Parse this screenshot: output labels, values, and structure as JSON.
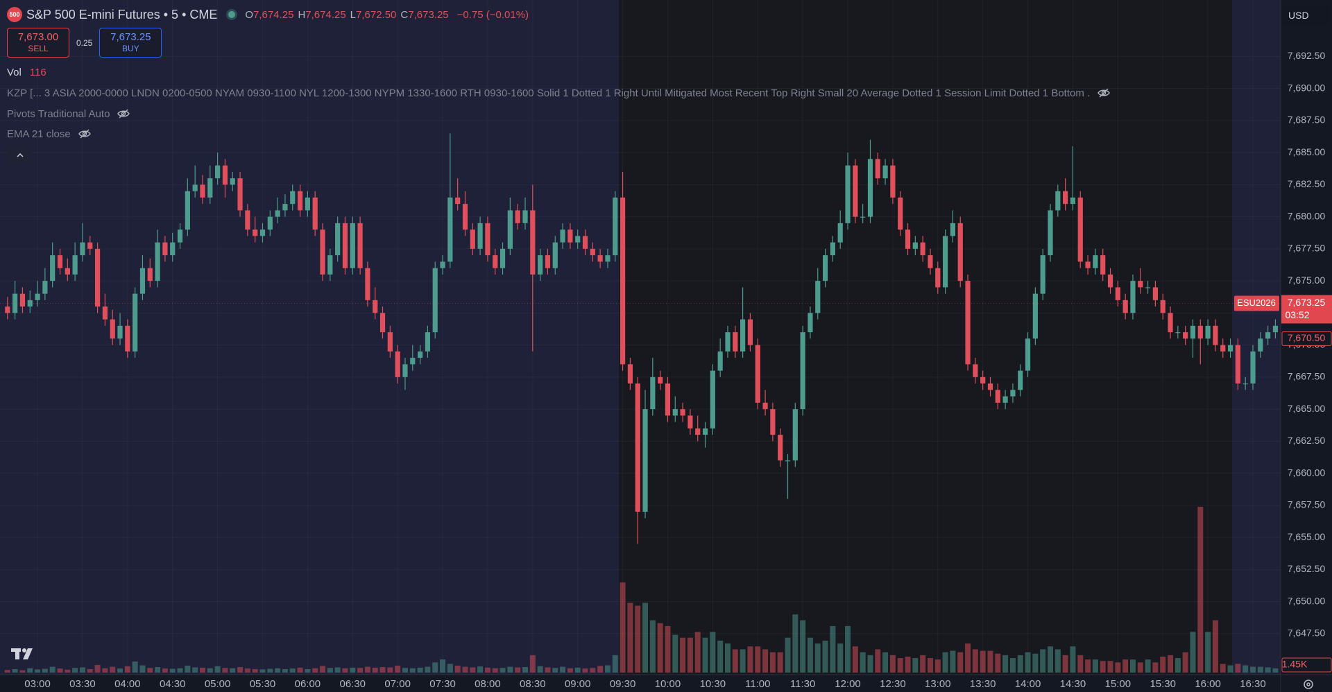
{
  "header": {
    "logo": "500",
    "symbol": "S&P 500 E-mini Futures • 5 • CME",
    "ohlc": [
      {
        "label": "O",
        "value": "7,674.25"
      },
      {
        "label": "H",
        "value": "7,674.25"
      },
      {
        "label": "L",
        "value": "7,672.50"
      },
      {
        "label": "C",
        "value": "7,673.25"
      }
    ],
    "change": "−0.75 (−0.01%)",
    "sell": {
      "price": "7,673.00",
      "label": "SELL"
    },
    "spread": "0.25",
    "buy": {
      "price": "7,673.25",
      "label": "BUY"
    },
    "volume": {
      "label": "Vol",
      "value": "116"
    },
    "indicators": [
      "KZP [... 3 ASIA 2000-0000 LNDN 0200-0500 NYAM 0930-1100 NYL 1200-1300 NYPM 1330-1600 RTH 0930-1600 Solid 1 Dotted 1 Right Until Mitigated Most Recent Top Right Small 20 Average Dotted 1 Session Limit Dotted 1 Bottom .",
      "Pivots Traditional Auto",
      "EMA 21 close"
    ],
    "currency": "USD"
  },
  "chart_data": {
    "type": "candlestick",
    "up_color": "#4e9c8d",
    "down_color": "#e0505c",
    "grid": true,
    "open": [
      7673,
      7672.5,
      7674,
      7673,
      7673.5,
      7674,
      7675,
      7677,
      7676,
      7675.5,
      7677,
      7678,
      7677.5,
      7673,
      7672,
      7670.5,
      7671.5,
      7669.5,
      7674,
      7676,
      7675,
      7678,
      7677,
      7678,
      7679,
      7682,
      7682.5,
      7681.5,
      7683,
      7684,
      7682.5,
      7683,
      7680.5,
      7679,
      7678.5,
      7679,
      7680,
      7680.5,
      7681,
      7682,
      7680.5,
      7681.5,
      7679,
      7675.5,
      7677,
      7679.5,
      7676,
      7679.5,
      7676,
      7673.5,
      7672.5,
      7671,
      7669.5,
      7667.5,
      7668.5,
      7669,
      7669.5,
      7671,
      7676,
      7676.5,
      7681.5,
      7681,
      7679,
      7677.5,
      7679.5,
      7677,
      7676,
      7677.5,
      7680.5,
      7679.5,
      7680.5,
      7675.5,
      7677,
      7676,
      7678,
      7679,
      7678,
      7678.5,
      7677.5,
      7677,
      7676.5,
      7677,
      7681.5,
      7668.5,
      7667,
      7657,
      7665,
      7667.5,
      7667,
      7664.5,
      7665,
      7664.5,
      7663.5,
      7663,
      7663.5,
      7668,
      7669.5,
      7671,
      7669.5,
      7672,
      7670,
      7665.5,
      7665,
      7663,
      7661,
      7661,
      7665,
      7671,
      7672.5,
      7675,
      7677,
      7678,
      7679.5,
      7684,
      7680,
      7680,
      7684.5,
      7683,
      7684,
      7681.5,
      7679,
      7677.5,
      7678,
      7677,
      7676,
      7674.5,
      7678.5,
      7679.5,
      7675,
      7668.5,
      7667.5,
      7667,
      7666.5,
      7665.5,
      7666,
      7666.5,
      7668,
      7670.5,
      7674,
      7677,
      7680.5,
      7682,
      7681,
      7681.5,
      7676.5,
      7676,
      7677,
      7675.5,
      7674.5,
      7673.5,
      7672.5,
      7675,
      7674.5,
      7674.5,
      7673.5,
      7672.5,
      7671,
      7671,
      7670.5,
      7671.5,
      7670.5,
      7671.5,
      7670,
      7669.5,
      7670,
      7667,
      7667,
      7669.5,
      7670.5,
      7671
    ],
    "high": [
      7673.75,
      7675,
      7674.5,
      7674.25,
      7675,
      7676,
      7678,
      7677.5,
      7676.75,
      7678,
      7679.5,
      7678.5,
      7678,
      7674,
      7672.75,
      7672.5,
      7672,
      7674.5,
      7677,
      7676.75,
      7679,
      7678.5,
      7678.75,
      7679.5,
      7683,
      7684,
      7683.25,
      7684,
      7685,
      7684.5,
      7683.5,
      7683.5,
      7681,
      7680,
      7679.5,
      7680.5,
      7681.5,
      7681.75,
      7682.5,
      7682.5,
      7682,
      7682,
      7679.5,
      7677.5,
      7680,
      7680,
      7680,
      7680,
      7676.5,
      7674.5,
      7673,
      7671.5,
      7670,
      7669,
      7670,
      7670,
      7671.5,
      7676.5,
      7677,
      7686.5,
      7683,
      7682,
      7679.5,
      7680,
      7680,
      7677.5,
      7678,
      7681.5,
      7681,
      7681.5,
      7682.5,
      7677.5,
      7677.5,
      7678.5,
      7679.5,
      7679.5,
      7679,
      7679,
      7678,
      7677.5,
      7677.5,
      7682,
      7683.5,
      7669,
      7667.5,
      7666.5,
      7669,
      7668,
      7667.5,
      7666,
      7665.5,
      7665,
      7664.5,
      7664,
      7668.5,
      7670.5,
      7671.5,
      7671.5,
      7674.5,
      7672.5,
      7670.5,
      7666.5,
      7665.5,
      7663.5,
      7661.5,
      7665.5,
      7671.5,
      7673,
      7676,
      7677.5,
      7678.5,
      7680.5,
      7685,
      7684.5,
      7681,
      7686,
      7685,
      7684.5,
      7684.5,
      7682,
      7679.5,
      7678.5,
      7678.5,
      7677.5,
      7676.5,
      7679,
      7680.5,
      7680,
      7675.5,
      7669,
      7668,
      7667.5,
      7667,
      7666.5,
      7667,
      7668.5,
      7671,
      7674.5,
      7677.5,
      7681,
      7682.5,
      7683,
      7685.5,
      7682,
      7677,
      7677.5,
      7677.5,
      7676,
      7675,
      7674,
      7675.5,
      7676,
      7675,
      7675,
      7674,
      7673,
      7671.5,
      7671.5,
      7672,
      7672,
      7672,
      7672,
      7670.5,
      7670.5,
      7670.5,
      7667.5,
      7670,
      7671,
      7671.5,
      7672
    ],
    "low": [
      7672,
      7672,
      7672.5,
      7672.5,
      7673,
      7673.5,
      7674.5,
      7675.5,
      7675,
      7675,
      7676.5,
      7677,
      7672.5,
      7671.5,
      7670,
      7670,
      7669,
      7669,
      7673.5,
      7674.5,
      7674.5,
      7676.5,
      7676.5,
      7677.5,
      7678.5,
      7681.5,
      7681,
      7681,
      7682.5,
      7681.5,
      7682,
      7680,
      7678.5,
      7678,
      7678,
      7678.5,
      7679.5,
      7680,
      7680.5,
      7680,
      7680,
      7678.5,
      7675,
      7675,
      7676.5,
      7675.5,
      7675.5,
      7675.5,
      7673,
      7672,
      7670.5,
      7669,
      7667,
      7666.5,
      7668,
      7668.5,
      7669,
      7670.5,
      7675.5,
      7676,
      7680.5,
      7678.5,
      7677,
      7677,
      7676.5,
      7675.5,
      7675.5,
      7677,
      7679,
      7679,
      7669.5,
      7675,
      7675.5,
      7675.5,
      7677.5,
      7677.5,
      7677.5,
      7677,
      7676.5,
      7676,
      7676,
      7676.5,
      7668,
      7666.5,
      7654.5,
      7656.5,
      7664.5,
      7666.5,
      7664,
      7664,
      7664,
      7663,
      7662.5,
      7662,
      7663,
      7667.5,
      7669,
      7669,
      7669,
      7669.5,
      7665,
      7664.5,
      7662.5,
      7660.5,
      7658,
      7660.5,
      7664.5,
      7670.5,
      7672,
      7674.5,
      7676.5,
      7677.5,
      7679,
      7679.5,
      7679.5,
      7679.5,
      7682.5,
      7682.5,
      7681,
      7678.5,
      7677,
      7677,
      7676.5,
      7675.5,
      7674,
      7674,
      7678,
      7674.5,
      7668,
      7667,
      7666.5,
      7666,
      7665,
      7665,
      7665.5,
      7666,
      7667.5,
      7670,
      7673.5,
      7676.5,
      7680,
      7680.5,
      7680.5,
      7676,
      7675.5,
      7675.5,
      7675,
      7674,
      7673,
      7672,
      7672,
      7674,
      7674,
      7673,
      7672,
      7670.5,
      7670.5,
      7670,
      7669,
      7668.5,
      7670,
      7669.5,
      7669,
      7669,
      7666.5,
      7666.5,
      7666.5,
      7669,
      7670,
      7670.5
    ],
    "close": [
      7672.5,
      7674,
      7673,
      7673.5,
      7674,
      7675,
      7677,
      7676,
      7675.5,
      7677,
      7678,
      7677.5,
      7673,
      7672,
      7670.5,
      7671.5,
      7669.5,
      7674,
      7676,
      7675,
      7678,
      7677,
      7678,
      7679,
      7682,
      7682.5,
      7681.5,
      7683,
      7684,
      7682.5,
      7683,
      7680.5,
      7679,
      7678.5,
      7679,
      7680,
      7680.5,
      7681,
      7682,
      7680.5,
      7681.5,
      7679,
      7675.5,
      7677,
      7679.5,
      7676,
      7679.5,
      7676,
      7673.5,
      7672.5,
      7671,
      7669.5,
      7667.5,
      7668.5,
      7669,
      7669.5,
      7671,
      7676,
      7676.5,
      7681.5,
      7681,
      7679,
      7677.5,
      7679.5,
      7677,
      7676,
      7677.5,
      7680.5,
      7679.5,
      7680.5,
      7675.5,
      7677,
      7676,
      7678,
      7679,
      7678,
      7678.5,
      7677.5,
      7677,
      7676.5,
      7677,
      7681.5,
      7668.5,
      7667,
      7657,
      7665,
      7667.5,
      7667,
      7664.5,
      7665,
      7664.5,
      7663.5,
      7663,
      7663.5,
      7668,
      7669.5,
      7671,
      7669.5,
      7672,
      7670,
      7665.5,
      7665,
      7663,
      7661,
      7661,
      7665,
      7671,
      7672.5,
      7675,
      7677,
      7678,
      7679.5,
      7684,
      7680,
      7680,
      7684.5,
      7683,
      7684,
      7681.5,
      7679,
      7677.5,
      7678,
      7677,
      7676,
      7674.5,
      7678.5,
      7679.5,
      7675,
      7668.5,
      7667.5,
      7667,
      7666.5,
      7665.5,
      7666,
      7666.5,
      7668,
      7670.5,
      7674,
      7677,
      7680.5,
      7682,
      7681,
      7681.5,
      7676.5,
      7676,
      7677,
      7675.5,
      7674.5,
      7673.5,
      7672.5,
      7675,
      7674.5,
      7674.5,
      7673.5,
      7672.5,
      7671,
      7671,
      7670.5,
      7671.5,
      7670.5,
      7671.5,
      7670,
      7669.5,
      7670,
      7667,
      7667,
      7669.5,
      7670.5,
      7671,
      7671.5
    ],
    "volume": [
      900,
      1200,
      800,
      1500,
      1100,
      1300,
      2000,
      1400,
      1000,
      1600,
      1800,
      1200,
      2600,
      1500,
      2000,
      1400,
      2200,
      3800,
      2500,
      1600,
      1900,
      1400,
      1300,
      1500,
      2400,
      1800,
      1700,
      1500,
      2200,
      1600,
      1500,
      1900,
      1400,
      1200,
      1100,
      1300,
      1500,
      1200,
      1400,
      1700,
      1200,
      1500,
      2300,
      1600,
      1800,
      1500,
      1700,
      1600,
      2000,
      1700,
      1900,
      1800,
      2400,
      1600,
      1500,
      1700,
      2000,
      3500,
      4500,
      3000,
      2400,
      2000,
      1800,
      2100,
      1700,
      1500,
      1600,
      2000,
      1800,
      1900,
      6000,
      2200,
      1800,
      1600,
      2000,
      1500,
      1700,
      1400,
      1600,
      2300,
      2500,
      6000,
      31000,
      24000,
      23000,
      24000,
      18000,
      17000,
      16000,
      13000,
      12000,
      12000,
      14000,
      12000,
      14000,
      11000,
      10000,
      8000,
      8000,
      9000,
      9000,
      8000,
      7000,
      7000,
      12000,
      20000,
      18000,
      12000,
      10000,
      11000,
      16000,
      10000,
      16000,
      9000,
      7000,
      6000,
      8000,
      7000,
      6000,
      5000,
      5500,
      5000,
      6000,
      5000,
      4500,
      7000,
      7500,
      7000,
      10000,
      8000,
      7500,
      7500,
      6500,
      6000,
      5000,
      6000,
      7000,
      6500,
      8000,
      9000,
      8000,
      6000,
      9000,
      6000,
      4500,
      4500,
      4000,
      4000,
      3500,
      4500,
      4500,
      3500,
      4500,
      3500,
      5500,
      6000,
      5000,
      7000,
      14000,
      57000,
      14000,
      18000,
      3000,
      2500,
      3000,
      2500,
      2000,
      2000,
      1800,
      1450
    ],
    "xlim": [
      -1,
      169.7
    ],
    "xticks": [
      {
        "value": 4,
        "label": "03:00"
      },
      {
        "value": 10,
        "label": "03:30"
      },
      {
        "value": 16,
        "label": "04:00"
      },
      {
        "value": 22,
        "label": "04:30"
      },
      {
        "value": 28,
        "label": "05:00"
      },
      {
        "value": 34,
        "label": "05:30"
      },
      {
        "value": 40,
        "label": "06:00"
      },
      {
        "value": 46,
        "label": "06:30"
      },
      {
        "value": 52,
        "label": "07:00"
      },
      {
        "value": 58,
        "label": "07:30"
      },
      {
        "value": 64,
        "label": "08:00"
      },
      {
        "value": 70,
        "label": "08:30"
      },
      {
        "value": 76,
        "label": "09:00"
      },
      {
        "value": 82,
        "label": "09:30"
      },
      {
        "value": 88,
        "label": "10:00"
      },
      {
        "value": 94,
        "label": "10:30"
      },
      {
        "value": 100,
        "label": "11:00"
      },
      {
        "value": 106,
        "label": "11:30"
      },
      {
        "value": 112,
        "label": "12:00"
      },
      {
        "value": 118,
        "label": "12:30"
      },
      {
        "value": 124,
        "label": "13:00"
      },
      {
        "value": 130,
        "label": "13:30"
      },
      {
        "value": 136,
        "label": "14:00"
      },
      {
        "value": 142,
        "label": "14:30"
      },
      {
        "value": 148,
        "label": "15:00"
      },
      {
        "value": 154,
        "label": "15:30"
      },
      {
        "value": 160,
        "label": "16:00"
      },
      {
        "value": 166,
        "label": "16:30"
      }
    ],
    "ylim": [
      7644.3,
      7696.9
    ],
    "yticks": [
      {
        "value": 7647.5,
        "label": "7,647.50"
      },
      {
        "value": 7650,
        "label": "7,650.00"
      },
      {
        "value": 7652.5,
        "label": "7,652.50"
      },
      {
        "value": 7655,
        "label": "7,655.00"
      },
      {
        "value": 7657.5,
        "label": "7,657.50"
      },
      {
        "value": 7660,
        "label": "7,660.00"
      },
      {
        "value": 7662.5,
        "label": "7,662.50"
      },
      {
        "value": 7665,
        "label": "7,665.00"
      },
      {
        "value": 7667.5,
        "label": "7,667.50"
      },
      {
        "value": 7670,
        "label": "7,670.00"
      },
      {
        "value": 7672.5,
        "label": "7,672.50"
      },
      {
        "value": 7675,
        "label": "7,675.00"
      },
      {
        "value": 7677.5,
        "label": "7,677.50"
      },
      {
        "value": 7680,
        "label": "7,680.00"
      },
      {
        "value": 7682.5,
        "label": "7,682.50"
      },
      {
        "value": 7685,
        "label": "7,685.00"
      },
      {
        "value": 7687.5,
        "label": "7,687.50"
      },
      {
        "value": 7690,
        "label": "7,690.00"
      },
      {
        "value": 7692.5,
        "label": "7,692.50"
      }
    ],
    "last_price": {
      "value": 7673.25,
      "label": "7,673.25"
    },
    "countdown": "03:52",
    "symbol_badge": "ESU2026",
    "price_marker": {
      "value": 7670.5,
      "label": "7,670.50"
    },
    "volume_label": {
      "value": 1450,
      "label": "1.45K"
    }
  }
}
